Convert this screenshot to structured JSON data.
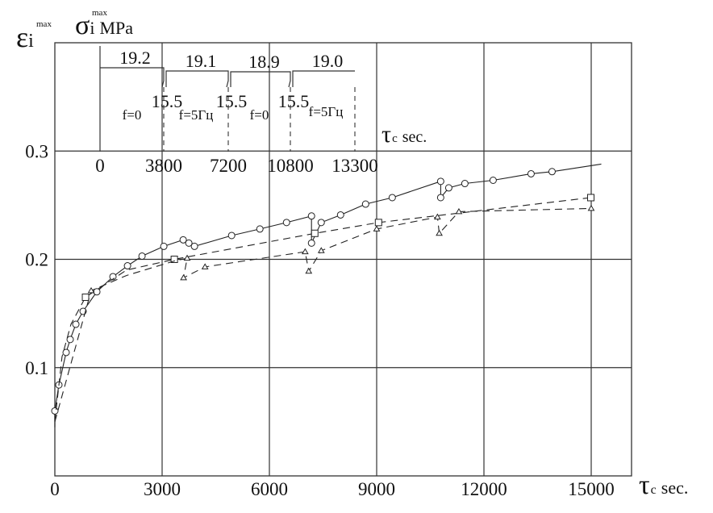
{
  "chart_data": {
    "type": "line",
    "title": "",
    "ylabel": {
      "symbol": "ε",
      "sub": "i",
      "sup": "max"
    },
    "xlabel": {
      "symbol": "τ",
      "sub": "c",
      "unit": "sec."
    },
    "xlim": [
      0,
      15000
    ],
    "ylim": [
      0,
      0.3
    ],
    "x_ticks": [
      "0",
      "3000",
      "6000",
      "9000",
      "12000",
      "15000"
    ],
    "y_ticks": [
      "0.1",
      "0.2",
      "0.3"
    ],
    "grid": true,
    "series": [
      {
        "name": "circles",
        "marker": "circle",
        "style": "solid",
        "points": [
          [
            0,
            0.045
          ],
          [
            0,
            0.06
          ],
          [
            113,
            0.084
          ],
          [
            316,
            0.114
          ],
          [
            429,
            0.126
          ],
          [
            587,
            0.14
          ],
          [
            790,
            0.152
          ],
          [
            1174,
            0.17
          ],
          [
            1625,
            0.184
          ],
          [
            2032,
            0.194
          ],
          [
            2438,
            0.203
          ],
          [
            3047,
            0.212
          ],
          [
            3589,
            0.218
          ],
          [
            3747,
            0.215
          ],
          [
            3905,
            0.212
          ],
          [
            4944,
            0.222
          ],
          [
            5734,
            0.228
          ],
          [
            6479,
            0.234
          ],
          [
            7178,
            0.24
          ],
          [
            7178,
            0.215
          ],
          [
            7449,
            0.234
          ],
          [
            7991,
            0.241
          ],
          [
            8691,
            0.251
          ],
          [
            9436,
            0.257
          ],
          [
            10790,
            0.272
          ],
          [
            10790,
            0.257
          ],
          [
            11016,
            0.266
          ],
          [
            11467,
            0.27
          ],
          [
            12257,
            0.273
          ],
          [
            13318,
            0.279
          ],
          [
            13905,
            0.281
          ],
          [
            15282,
            0.288
          ]
        ],
        "unmarked": [
          0,
          31
        ]
      },
      {
        "name": "squares",
        "marker": "square",
        "style": "dashed",
        "points": [
          [
            0,
            0.05
          ],
          [
            200,
            0.11
          ],
          [
            450,
            0.14
          ],
          [
            858,
            0.165
          ],
          [
            2000,
            0.19
          ],
          [
            3341,
            0.2
          ],
          [
            7269,
            0.224
          ],
          [
            9052,
            0.234
          ],
          [
            14989,
            0.257
          ]
        ],
        "unmarked": [
          0,
          1,
          2,
          4
        ]
      },
      {
        "name": "triangles",
        "marker": "triangle",
        "style": "dashed",
        "points": [
          [
            0,
            0.05
          ],
          [
            1016,
            0.171
          ],
          [
            2000,
            0.185
          ],
          [
            3400,
            0.199
          ],
          [
            3700,
            0.201
          ],
          [
            3600,
            0.183
          ],
          [
            4200,
            0.193
          ],
          [
            7000,
            0.207
          ],
          [
            7100,
            0.189
          ],
          [
            7450,
            0.208
          ],
          [
            9000,
            0.228
          ],
          [
            10700,
            0.239
          ],
          [
            10750,
            0.224
          ],
          [
            11300,
            0.244
          ],
          [
            15000,
            0.247
          ]
        ],
        "unmarked": [
          0,
          2,
          3
        ]
      }
    ],
    "inset": {
      "ylabel": {
        "symbol": "σ",
        "sub": "i",
        "sup": "max",
        "unit": "MPa"
      },
      "xlabel": {
        "symbol": "τ",
        "sub": "c",
        "unit": "sec."
      },
      "x_ticks": [
        "0",
        "3800",
        "7200",
        "10800",
        "13300"
      ],
      "stress_high": [
        "19.2",
        "19.1",
        "18.9",
        "19.0"
      ],
      "stress_low": [
        "15.5",
        "15.5",
        "15.5"
      ],
      "frequency": [
        "f=0",
        "f=5Гц",
        "f=0",
        "f=5Гц"
      ]
    }
  }
}
